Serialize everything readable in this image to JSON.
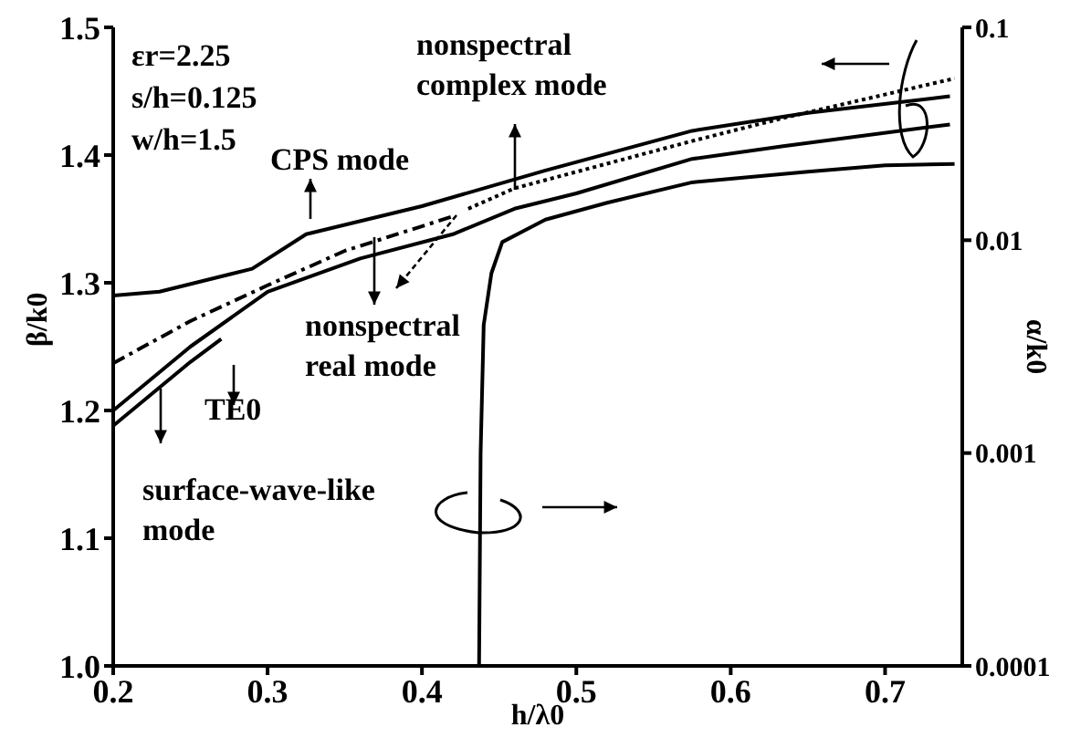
{
  "chart_data": {
    "type": "line",
    "xlabel": "h/λ0",
    "ylabel": "β/k0",
    "y2label": "α/k0",
    "xlim": [
      0.2,
      0.75
    ],
    "xticks": [
      0.2,
      0.3,
      0.4,
      0.5,
      0.6,
      0.7
    ],
    "ylim": [
      1.0,
      1.5
    ],
    "yticks": [
      {
        "value": 1.0,
        "label": "1.0"
      },
      1.1,
      1.2,
      1.3,
      1.4,
      1.5
    ],
    "y2lim": [
      0.0001,
      0.1
    ],
    "y2ticks": [
      0.0001,
      0.001,
      0.01,
      0.1
    ],
    "log": "y2",
    "annotations": [
      "εr=2.25",
      "s/h=0.125",
      "w/h=1.5",
      "CPS mode",
      "nonspectral complex mode",
      "nonspectral real mode",
      "TE0",
      "surface-wave-like mode"
    ],
    "series": [
      {
        "color": "#000000",
        "line_style": "solid",
        "x": [
          0.2,
          0.23,
          0.29,
          0.325,
          0.4,
          0.48,
          0.575,
          0.65,
          0.742
        ],
        "values": [
          1.29,
          1.293,
          1.311,
          1.338,
          1.36,
          1.388,
          1.419,
          1.433,
          1.446
        ]
      },
      {
        "color": "#000000",
        "line_style": "solid",
        "x": [
          0.2,
          0.25,
          0.3,
          0.36,
          0.42,
          0.46,
          0.5,
          0.575,
          0.634,
          0.742
        ],
        "values": [
          1.2,
          1.25,
          1.293,
          1.319,
          1.338,
          1.358,
          1.37,
          1.397,
          1.407,
          1.424
        ]
      },
      {
        "color": "#000000",
        "line_style": "solid",
        "x": [
          0.2,
          0.25,
          0.27
        ],
        "values": [
          1.188,
          1.238,
          1.256
        ]
      },
      {
        "color": "#000000",
        "line_style": "dashed",
        "x": [
          0.2,
          0.25,
          0.3,
          0.35,
          0.42
        ],
        "values": [
          1.237,
          1.27,
          1.298,
          1.325,
          1.352
        ]
      },
      {
        "color": "#000000",
        "line_style": "dotted",
        "x": [
          0.43,
          0.46,
          0.575,
          0.634,
          0.745
        ],
        "values": [
          1.358,
          1.374,
          1.411,
          1.429,
          1.46
        ]
      },
      {
        "color": "#000000",
        "line_style": "solid",
        "axis": "y2",
        "x": [
          0.437,
          0.438,
          0.44,
          0.445,
          0.452,
          0.48,
          0.52,
          0.575,
          0.65,
          0.7,
          0.745
        ],
        "values": [
          0.0001,
          0.001,
          0.004,
          0.007,
          0.0098,
          0.0125,
          0.015,
          0.0187,
          0.021,
          0.0225,
          0.0228
        ]
      }
    ]
  }
}
